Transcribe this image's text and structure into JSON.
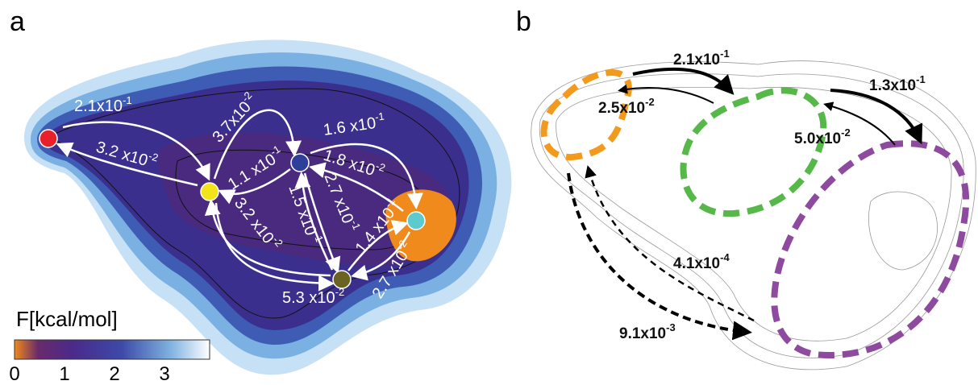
{
  "panels": [
    {
      "label": "a",
      "rates": [
        {
          "mantissa": "2.1x10",
          "exponent": "-1"
        },
        {
          "mantissa": "3.2 x10",
          "exponent": "-2"
        },
        {
          "mantissa": "3.7x10",
          "exponent": "-2"
        },
        {
          "mantissa": "1.1 x10",
          "exponent": "-1"
        },
        {
          "mantissa": "1.6 x10",
          "exponent": "-1"
        },
        {
          "mantissa": "1.8 x10",
          "exponent": "-2"
        },
        {
          "mantissa": "2.7 x10",
          "exponent": "-1"
        },
        {
          "mantissa": "1.5 x10",
          "exponent": "-1"
        },
        {
          "mantissa": "3.2 x10",
          "exponent": "-2"
        },
        {
          "mantissa": "5.3 x10",
          "exponent": "-2"
        },
        {
          "mantissa": "1.4 x10",
          "exponent": "-1"
        },
        {
          "mantissa": "2.7 x10",
          "exponent": "-2"
        }
      ],
      "colorbar": {
        "title": "F[kcal/mol]",
        "ticks": [
          "0",
          "1",
          "2",
          "3"
        ]
      }
    },
    {
      "label": "b",
      "rates": [
        {
          "mantissa": "2.1x10",
          "exponent": "-1"
        },
        {
          "mantissa": "2.5x10",
          "exponent": "-2"
        },
        {
          "mantissa": "1.3x10",
          "exponent": "-1"
        },
        {
          "mantissa": "5.0x10",
          "exponent": "-2"
        },
        {
          "mantissa": "4.1x10",
          "exponent": "-4"
        },
        {
          "mantissa": "9.1x10",
          "exponent": "-3"
        }
      ]
    }
  ]
}
